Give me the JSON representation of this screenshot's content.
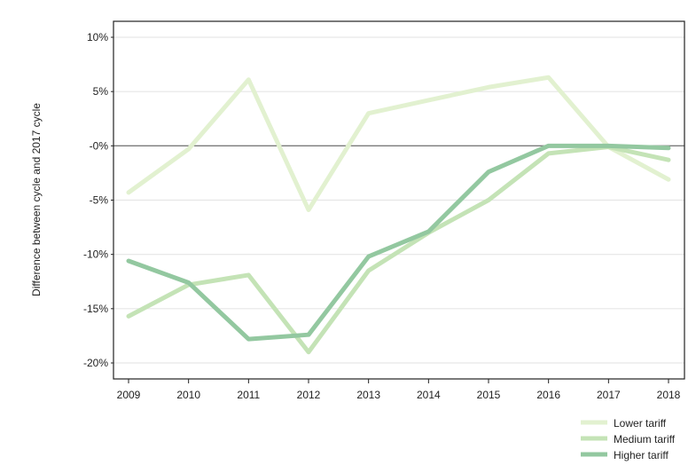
{
  "chart_data": {
    "type": "line",
    "title": "",
    "xlabel": "",
    "ylabel": "Difference between cycle and 2017 cycle",
    "x": [
      "2009",
      "2010",
      "2011",
      "2012",
      "2013",
      "2014",
      "2015",
      "2016",
      "2017",
      "2018"
    ],
    "ylim": [
      -21.5,
      11.5
    ],
    "yticks": [
      10,
      5,
      0,
      -5,
      -10,
      -15,
      -20
    ],
    "ytick_labels": [
      "10%",
      "5%",
      "-0%",
      "-5%",
      "-10%",
      "-15%",
      "-20%"
    ],
    "grid": true,
    "legend_position": "bottom-right",
    "series": [
      {
        "name": "Lower tariff",
        "color": "#e2f1d0",
        "values": [
          -4.3,
          -0.3,
          6.1,
          -5.9,
          3.0,
          4.2,
          5.4,
          6.3,
          -0.1,
          -3.1
        ]
      },
      {
        "name": "Medium tariff",
        "color": "#c4e3b6",
        "values": [
          -15.7,
          -12.8,
          -11.9,
          -19.0,
          -11.5,
          -8.0,
          -5.0,
          -0.7,
          -0.1,
          -1.3
        ]
      },
      {
        "name": "Higher tariff",
        "color": "#93c8a0",
        "values": [
          -10.6,
          -12.6,
          -17.8,
          -17.4,
          -10.2,
          -7.9,
          -2.4,
          0.0,
          0.0,
          -0.2
        ]
      }
    ]
  }
}
